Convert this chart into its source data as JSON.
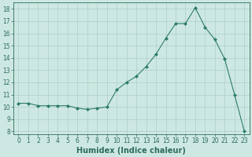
{
  "x": [
    0,
    1,
    2,
    3,
    4,
    5,
    6,
    7,
    8,
    9,
    10,
    11,
    12,
    13,
    14,
    15,
    16,
    17,
    18,
    19,
    20,
    21,
    22,
    23
  ],
  "y": [
    10.3,
    10.3,
    10.1,
    10.1,
    10.1,
    10.1,
    9.9,
    9.8,
    9.9,
    10.0,
    11.4,
    12.0,
    12.5,
    13.3,
    14.3,
    15.6,
    16.8,
    16.8,
    18.1,
    16.5,
    15.5,
    13.9,
    11.0,
    8.0
  ],
  "line_color": "#2e7d68",
  "marker": "D",
  "marker_size": 2.0,
  "bg_color": "#cde8e2",
  "grid_color": "#aececa",
  "xlabel": "Humidex (Indice chaleur)",
  "xlim": [
    -0.5,
    23.5
  ],
  "ylim": [
    7.8,
    18.5
  ],
  "yticks": [
    8,
    9,
    10,
    11,
    12,
    13,
    14,
    15,
    16,
    17,
    18
  ],
  "xticks": [
    0,
    1,
    2,
    3,
    4,
    5,
    6,
    7,
    8,
    9,
    10,
    11,
    12,
    13,
    14,
    15,
    16,
    17,
    18,
    19,
    20,
    21,
    22,
    23
  ],
  "tick_color": "#2e6b5e",
  "label_fontsize": 5.5,
  "xlabel_fontsize": 7.0
}
